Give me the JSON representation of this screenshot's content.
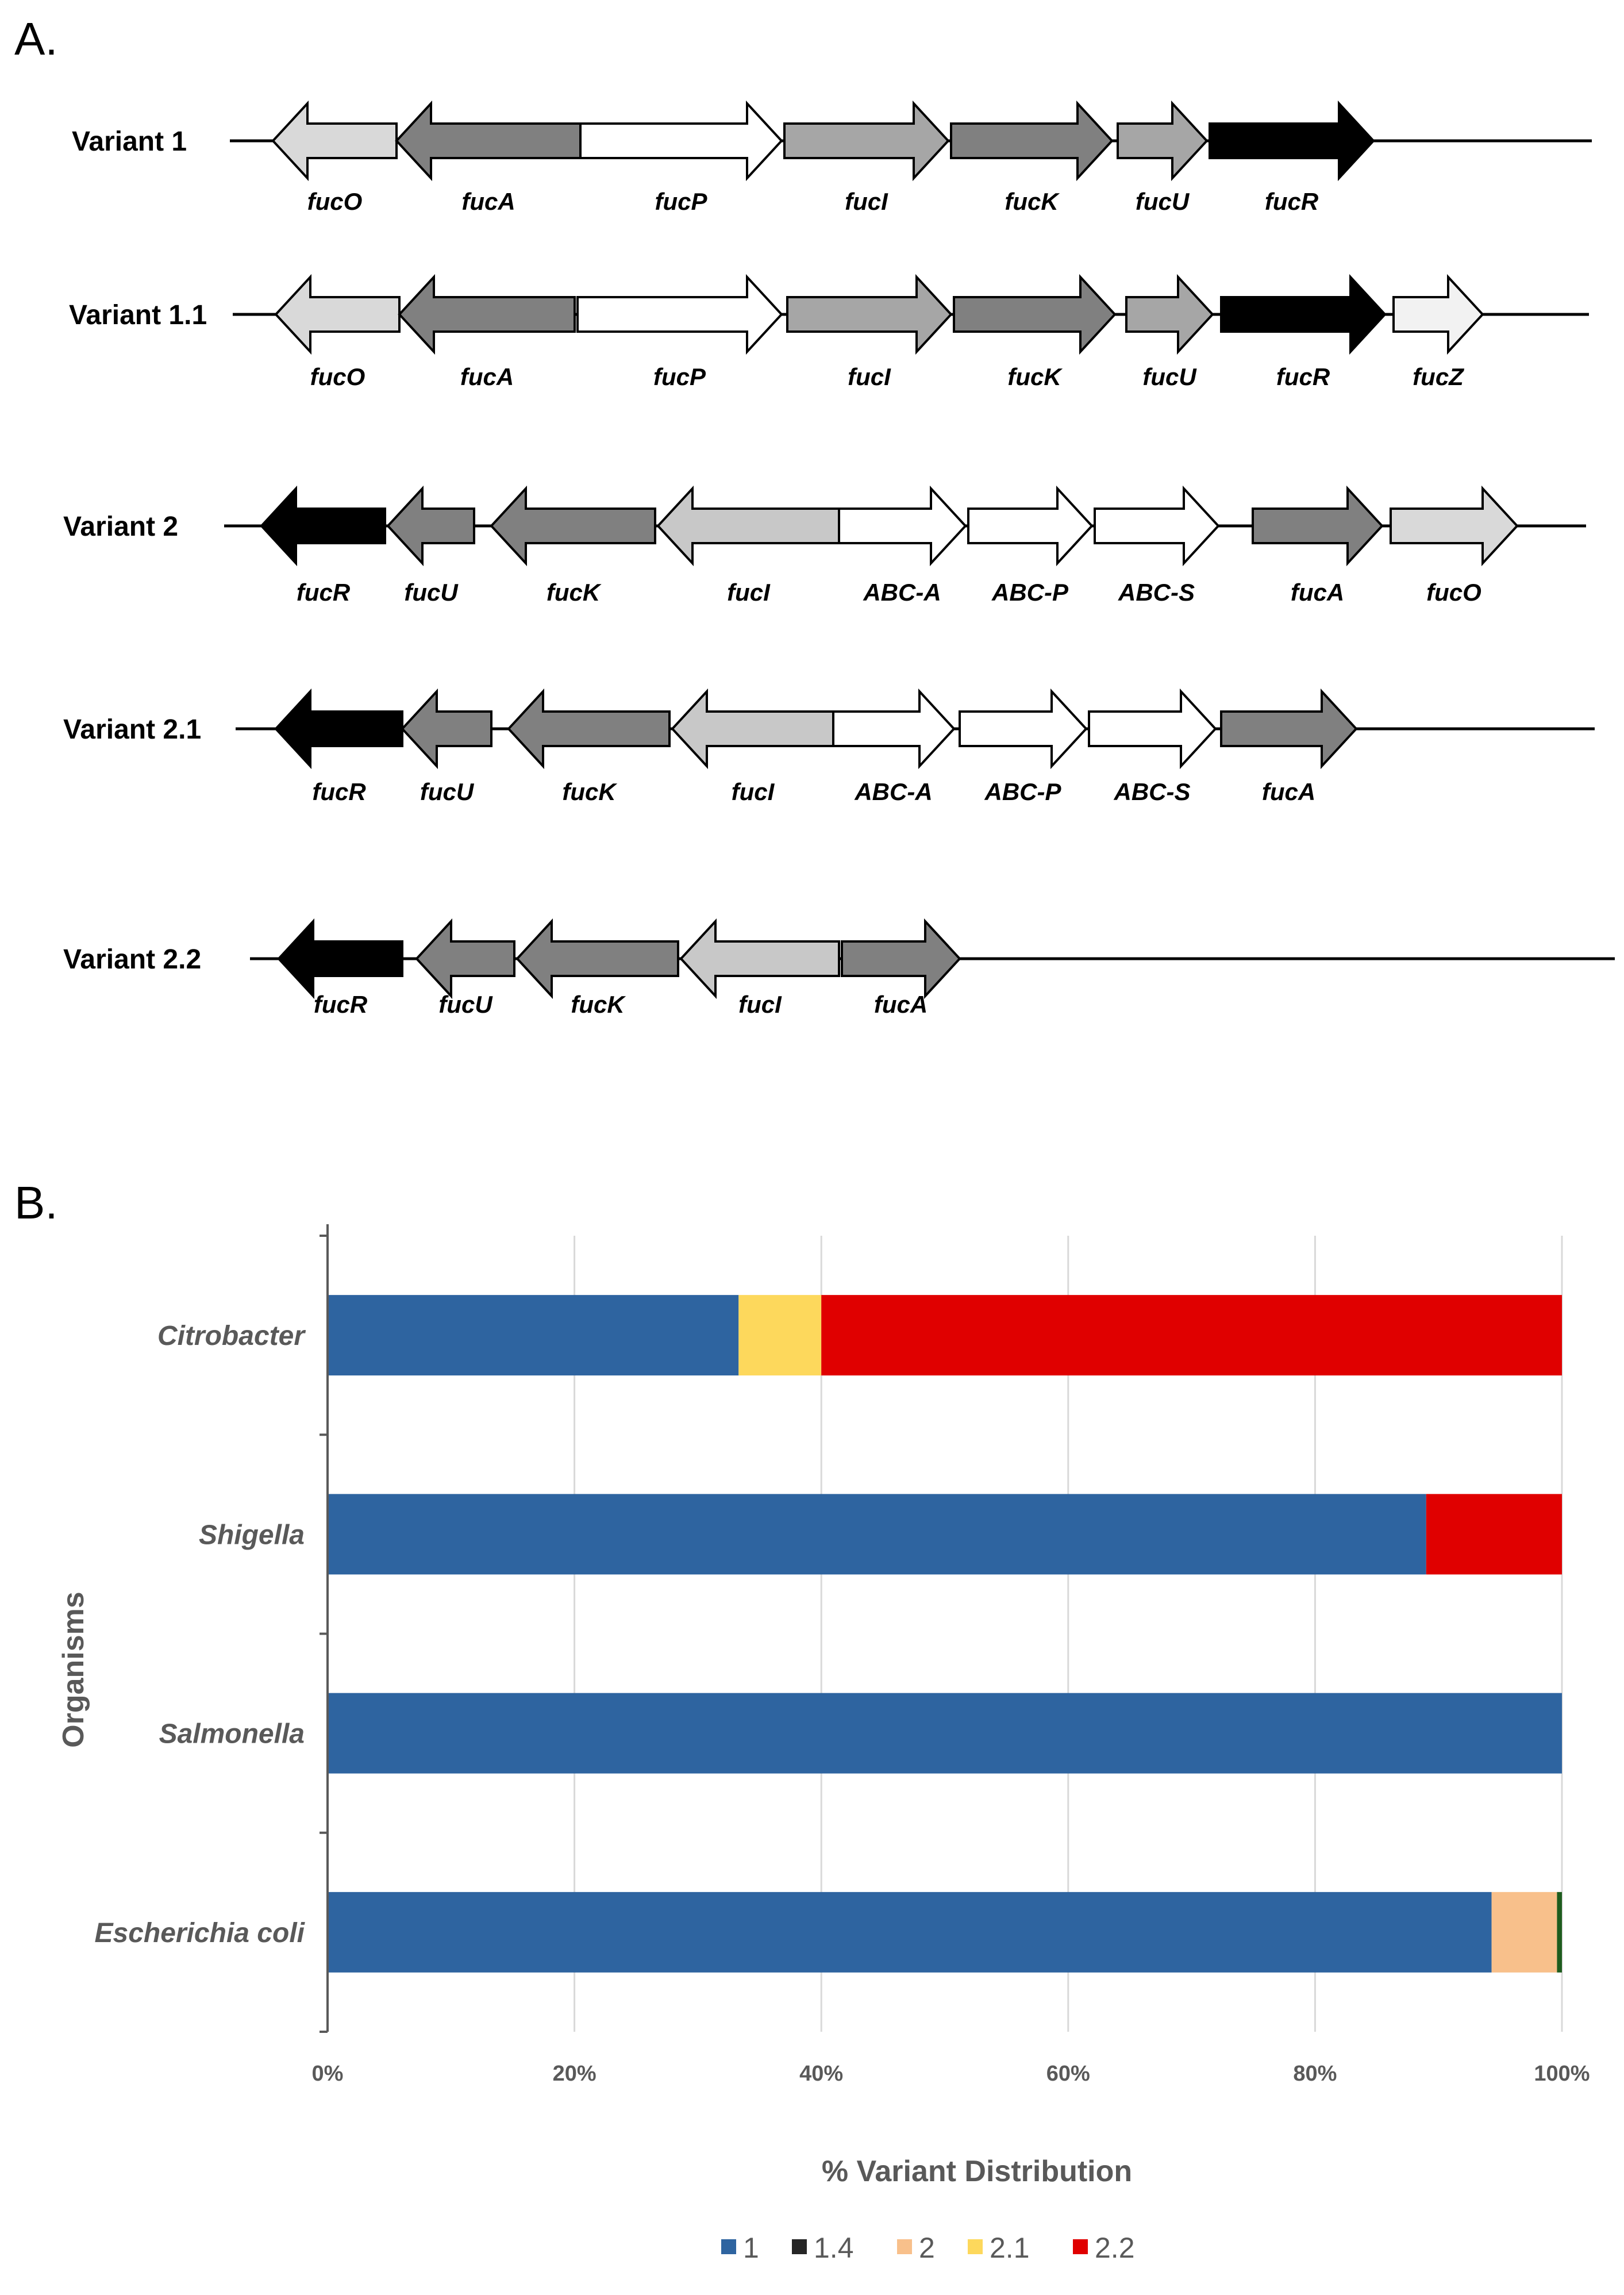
{
  "panel_a": {
    "letter": "A.",
    "variants": [
      {
        "name": "Variant 1",
        "genes": [
          {
            "name": "fucO",
            "dir": "left",
            "fill": "#d9d9d9"
          },
          {
            "name": "fucA",
            "dir": "left",
            "fill": "#808080"
          },
          {
            "name": "fucP",
            "dir": "right",
            "fill": "#ffffff"
          },
          {
            "name": "fucI",
            "dir": "right",
            "fill": "#a6a6a6"
          },
          {
            "name": "fucK",
            "dir": "right",
            "fill": "#808080"
          },
          {
            "name": "fucU",
            "dir": "right",
            "fill": "#a6a6a6"
          },
          {
            "name": "fucR",
            "dir": "right",
            "fill": "#000000"
          }
        ]
      },
      {
        "name": "Variant 1.1",
        "genes": [
          {
            "name": "fucO",
            "dir": "left",
            "fill": "#d9d9d9"
          },
          {
            "name": "fucA",
            "dir": "left",
            "fill": "#808080"
          },
          {
            "name": "fucP",
            "dir": "right",
            "fill": "#ffffff"
          },
          {
            "name": "fucI",
            "dir": "right",
            "fill": "#a6a6a6"
          },
          {
            "name": "fucK",
            "dir": "right",
            "fill": "#808080"
          },
          {
            "name": "fucU",
            "dir": "right",
            "fill": "#a6a6a6"
          },
          {
            "name": "fucR",
            "dir": "right",
            "fill": "#000000"
          },
          {
            "name": "fucZ",
            "dir": "right",
            "fill": "#f2f2f2"
          }
        ]
      },
      {
        "name": "Variant 2",
        "genes": [
          {
            "name": "fucR",
            "dir": "left",
            "fill": "#000000"
          },
          {
            "name": "fucU",
            "dir": "left",
            "fill": "#808080"
          },
          {
            "name": "fucK",
            "dir": "left",
            "fill": "#808080"
          },
          {
            "name": "fucI",
            "dir": "left",
            "fill": "#c8c8c8"
          },
          {
            "name": "ABC-A",
            "dir": "right",
            "fill": "#ffffff"
          },
          {
            "name": "ABC-P",
            "dir": "right",
            "fill": "#ffffff"
          },
          {
            "name": "ABC-S",
            "dir": "right",
            "fill": "#ffffff"
          },
          {
            "name": "fucA",
            "dir": "right",
            "fill": "#808080"
          },
          {
            "name": "fucO",
            "dir": "right",
            "fill": "#d9d9d9"
          }
        ]
      },
      {
        "name": "Variant 2.1",
        "genes": [
          {
            "name": "fucR",
            "dir": "left",
            "fill": "#000000"
          },
          {
            "name": "fucU",
            "dir": "left",
            "fill": "#808080"
          },
          {
            "name": "fucK",
            "dir": "left",
            "fill": "#808080"
          },
          {
            "name": "fucI",
            "dir": "left",
            "fill": "#c8c8c8"
          },
          {
            "name": "ABC-A",
            "dir": "right",
            "fill": "#ffffff"
          },
          {
            "name": "ABC-P",
            "dir": "right",
            "fill": "#ffffff"
          },
          {
            "name": "ABC-S",
            "dir": "right",
            "fill": "#ffffff"
          },
          {
            "name": "fucA",
            "dir": "right",
            "fill": "#808080"
          }
        ]
      },
      {
        "name": "Variant 2.2",
        "genes": [
          {
            "name": "fucR",
            "dir": "left",
            "fill": "#000000"
          },
          {
            "name": "fucU",
            "dir": "left",
            "fill": "#808080"
          },
          {
            "name": "fucK",
            "dir": "left",
            "fill": "#808080"
          },
          {
            "name": "fucI",
            "dir": "left",
            "fill": "#c8c8c8"
          },
          {
            "name": "fucA",
            "dir": "right",
            "fill": "#808080"
          }
        ]
      }
    ]
  },
  "chart_data": {
    "type": "bar",
    "orientation": "horizontal",
    "stacked": true,
    "panel_letter": "B.",
    "title": "",
    "xlabel": "% Variant Distribution",
    "ylabel": "Organisms",
    "xlim": [
      0,
      100
    ],
    "x_ticks": [
      0,
      20,
      40,
      60,
      80,
      100
    ],
    "x_tick_labels": [
      "0%",
      "20%",
      "40%",
      "60%",
      "80%",
      "100%"
    ],
    "grid": "vertical",
    "legend_position": "bottom",
    "categories": [
      "Citrobacter",
      "Shigella",
      "Salmonella",
      "Escherichia coli"
    ],
    "series": [
      {
        "name": "1",
        "color": "#2e64a0",
        "values": [
          33.3,
          89,
          100,
          94.3
        ]
      },
      {
        "name": "1.4",
        "color": "#262626",
        "values": [
          0,
          0,
          0,
          0
        ]
      },
      {
        "name": "2",
        "color": "#f8c08b",
        "values": [
          0,
          0,
          0,
          5.3
        ]
      },
      {
        "name": "2.1",
        "color": "#fdd85c",
        "values": [
          6.7,
          0,
          0,
          0
        ]
      },
      {
        "name": "2.2",
        "color": "#e00000",
        "values": [
          60,
          11,
          0,
          0
        ]
      }
    ],
    "unlabeled_segments": [
      {
        "category": "Escherichia coli",
        "color": "#1e5c1e",
        "value": 0.4
      }
    ]
  }
}
